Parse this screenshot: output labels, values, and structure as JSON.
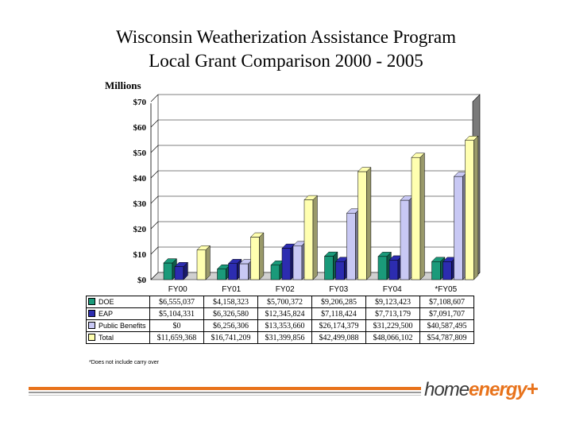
{
  "page": {
    "title_line1": "Wisconsin Weatherization Assistance Program",
    "title_line2": "Local Grant Comparison 2000 - 2005",
    "footnote": "*Does not include carry over",
    "logo_home": "home",
    "logo_energy": "energy",
    "logo_plus": "+"
  },
  "chart_data": {
    "type": "bar",
    "title": "Wisconsin Weatherization Assistance Program Local Grant Comparison 2000 - 2005",
    "ylabel": "Millions",
    "xlabel": "",
    "ylim": [
      0,
      70
    ],
    "yticks": [
      "$0",
      "$10",
      "$20",
      "$30",
      "$40",
      "$50",
      "$60",
      "$70"
    ],
    "categories": [
      "FY00",
      "FY01",
      "FY02",
      "FY03",
      "FY04",
      "*FY05"
    ],
    "grid": true,
    "legend": "table-below",
    "series": [
      {
        "name": "DOE",
        "color": "#1a9a7a",
        "values": [
          6.555037,
          4.158323,
          5.700372,
          9.206285,
          9.123423,
          7.108607
        ],
        "labels": [
          "$6,555,037",
          "$4,158,323",
          "$5,700,372",
          "$9,206,285",
          "$9,123,423",
          "$7,108,607"
        ]
      },
      {
        "name": "EAP",
        "color": "#2c2cb0",
        "values": [
          5.104331,
          6.32658,
          12.345824,
          7.118424,
          7.713179,
          7.091707
        ],
        "labels": [
          "$5,104,331",
          "$6,326,580",
          "$12,345,824",
          "$7,118,424",
          "$7,713,179",
          "$7,091,707"
        ]
      },
      {
        "name": "Public Benefits",
        "color": "#c8c8f4",
        "values": [
          0,
          6.256306,
          13.35366,
          26.174379,
          31.2295,
          40.587495
        ],
        "labels": [
          "$0",
          "$6,256,306",
          "$13,353,660",
          "$26,174,379",
          "$31,229,500",
          "$40,587,495"
        ]
      },
      {
        "name": "Total",
        "color": "#ffffb0",
        "values": [
          11.659368,
          16.741209,
          31.399856,
          42.499088,
          48.066102,
          54.787809
        ],
        "labels": [
          "$11,659,368",
          "$16,741,209",
          "$31,399,856",
          "$42,499,088",
          "$48,066,102",
          "$54,787,809"
        ]
      }
    ]
  }
}
